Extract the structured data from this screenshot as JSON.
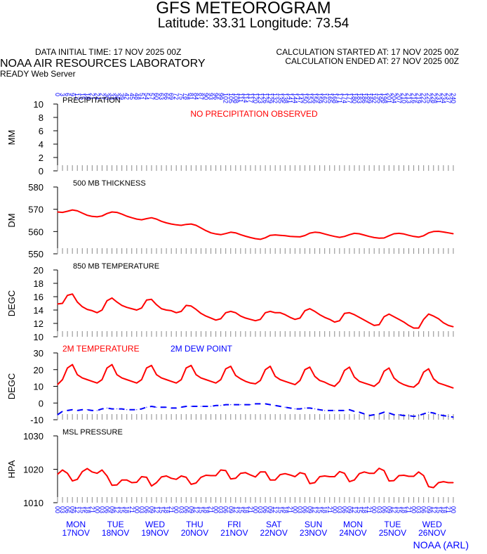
{
  "header": {
    "title": "GFS METEOROGRAM",
    "subtitle": "Latitude: 33.31 Longitude:  73.54",
    "init_time": "DATA INITIAL TIME: 17 NOV 2025 00Z",
    "calc_started": "CALCULATION STARTED AT: 17 NOV 2025 00Z",
    "calc_ended": "CALCULATION ENDED AT: 27 NOV 2025 00Z",
    "lab": "NOAA AIR RESOURCES LABORATORY",
    "server": "READY Web Server",
    "credit": "NOAA (ARL)"
  },
  "colors": {
    "red": "#ff0000",
    "blue": "#0000ff",
    "black": "#000000"
  },
  "chart_data": {
    "forecast_hours": [
      0,
      3,
      6,
      9,
      12,
      15,
      18,
      21,
      24,
      27,
      30,
      33,
      36,
      39,
      42,
      45,
      48,
      51,
      54,
      57,
      60,
      63,
      66,
      69,
      72,
      75,
      78,
      81,
      84,
      87,
      90,
      93,
      96,
      99,
      102,
      105,
      108,
      111,
      114,
      117,
      120,
      123,
      126,
      129,
      132,
      135,
      138,
      141,
      144,
      147,
      150,
      153,
      156,
      159,
      162,
      165,
      168,
      171,
      174,
      177,
      180,
      183,
      186,
      189,
      192,
      195,
      198,
      201,
      204,
      207,
      210,
      213,
      216,
      219,
      222,
      225,
      228,
      231,
      234,
      237,
      240
    ],
    "time_labels": [
      "00",
      "03",
      "06",
      "09",
      "12",
      "15",
      "18",
      "21",
      "00",
      "03",
      "06",
      "09",
      "12",
      "15",
      "18",
      "21",
      "00",
      "03",
      "06",
      "09",
      "12",
      "15",
      "18",
      "21",
      "00",
      "03",
      "06",
      "09",
      "12",
      "15",
      "18",
      "21",
      "00",
      "03",
      "06",
      "09",
      "12",
      "15",
      "18",
      "21",
      "00",
      "03",
      "06",
      "09",
      "12",
      "15",
      "18",
      "21",
      "00",
      "03",
      "06",
      "09",
      "12",
      "15",
      "18",
      "21",
      "00",
      "03",
      "06",
      "09",
      "12",
      "15",
      "18",
      "21",
      "00",
      "03",
      "06",
      "09",
      "12",
      "15",
      "18",
      "21",
      "00",
      "03",
      "06",
      "09",
      "12",
      "15",
      "18",
      "21",
      "00"
    ],
    "days": [
      {
        "dow": "MON",
        "date": "17NOV"
      },
      {
        "dow": "TUE",
        "date": "18NOV"
      },
      {
        "dow": "WED",
        "date": "19NOV"
      },
      {
        "dow": "THU",
        "date": "20NOV"
      },
      {
        "dow": "FRI",
        "date": "21NOV"
      },
      {
        "dow": "SAT",
        "date": "22NOV"
      },
      {
        "dow": "SUN",
        "date": "23NOV"
      },
      {
        "dow": "MON",
        "date": "24NOV"
      },
      {
        "dow": "TUE",
        "date": "25NOV"
      },
      {
        "dow": "WED",
        "date": "26NOV"
      }
    ],
    "panels": [
      {
        "id": "precip",
        "type": "bar",
        "title": "PRECIPITATION",
        "ylabel": "MM",
        "ylim": [
          0,
          10
        ],
        "ticks": [
          0,
          2,
          4,
          6,
          8,
          10
        ],
        "note": "NO PRECIPITATION OBSERVED",
        "values": [
          0,
          0,
          0,
          0,
          0,
          0,
          0,
          0,
          0,
          0,
          0,
          0,
          0,
          0,
          0,
          0,
          0,
          0,
          0,
          0,
          0,
          0,
          0,
          0,
          0,
          0,
          0,
          0,
          0,
          0,
          0,
          0,
          0,
          0,
          0,
          0,
          0,
          0,
          0,
          0,
          0,
          0,
          0,
          0,
          0,
          0,
          0,
          0,
          0,
          0,
          0,
          0,
          0,
          0,
          0,
          0,
          0,
          0,
          0,
          0,
          0,
          0,
          0,
          0,
          0,
          0,
          0,
          0,
          0,
          0,
          0,
          0,
          0,
          0,
          0,
          0,
          0,
          0,
          0,
          0,
          0
        ]
      },
      {
        "id": "thick",
        "type": "line",
        "title": "500 MB  THICKNESS",
        "ylabel": "DM",
        "ylim": [
          550,
          580
        ],
        "ticks": [
          550,
          560,
          570,
          580
        ],
        "series": [
          {
            "color": "red",
            "dashed": false,
            "values": [
              568.8,
              568.6,
              569.1,
              569.7,
              569.3,
              568.3,
              567.3,
              566.8,
              566.6,
              567.0,
              568.1,
              568.8,
              568.6,
              567.8,
              566.9,
              566.2,
              565.6,
              565.3,
              565.8,
              566.2,
              565.6,
              564.6,
              563.9,
              563.4,
              563.0,
              562.8,
              563.2,
              563.4,
              562.8,
              561.6,
              560.4,
              559.4,
              558.9,
              558.6,
              559.1,
              559.7,
              559.4,
              558.6,
              557.9,
              557.3,
              556.8,
              556.5,
              557.2,
              558.3,
              558.5,
              558.3,
              558.1,
              557.8,
              557.7,
              557.6,
              558.2,
              559.3,
              559.7,
              559.5,
              558.9,
              558.3,
              557.8,
              557.4,
              557.8,
              558.6,
              559.2,
              559.0,
              558.4,
              557.8,
              557.3,
              557.0,
              557.1,
              558.1,
              559.0,
              559.2,
              558.9,
              558.3,
              557.8,
              557.5,
              558.1,
              559.4,
              560.0,
              560.1,
              559.8,
              559.4,
              559.0
            ]
          }
        ]
      },
      {
        "id": "t850",
        "type": "line",
        "title": "850 MB  TEMPERATURE",
        "ylabel": "DEGC",
        "ylim": [
          10,
          20
        ],
        "ticks": [
          10,
          12,
          14,
          16,
          18,
          20
        ],
        "series": [
          {
            "color": "red",
            "dashed": false,
            "values": [
              14.9,
              15.0,
              16.2,
              16.4,
              15.2,
              14.5,
              14.1,
              13.9,
              13.6,
              14.0,
              15.4,
              15.8,
              15.2,
              14.7,
              14.4,
              14.2,
              14.0,
              14.3,
              15.5,
              15.6,
              14.8,
              14.2,
              14.0,
              13.9,
              13.6,
              13.8,
              14.7,
              14.6,
              14.1,
              13.5,
              13.1,
              12.8,
              12.5,
              12.7,
              13.6,
              13.8,
              13.6,
              13.1,
              12.8,
              12.6,
              12.4,
              12.6,
              13.6,
              13.8,
              13.6,
              13.6,
              13.3,
              12.9,
              12.6,
              12.8,
              13.9,
              14.2,
              13.8,
              13.3,
              12.9,
              12.6,
              12.2,
              12.4,
              13.5,
              13.6,
              13.3,
              12.9,
              12.5,
              12.1,
              11.7,
              11.8,
              13.0,
              13.4,
              13.0,
              12.6,
              12.2,
              11.7,
              11.3,
              11.3,
              12.6,
              13.4,
              13.1,
              12.7,
              12.1,
              11.7,
              11.5
            ]
          }
        ]
      },
      {
        "id": "t2m",
        "type": "line",
        "title": "",
        "legend": [
          {
            "label": "2M TEMPERATURE",
            "color": "red"
          },
          {
            "label": "2M  DEW POINT",
            "color": "blue"
          }
        ],
        "ylabel": "DEGC",
        "ylim": [
          -10,
          30
        ],
        "ticks": [
          -10,
          0,
          10,
          20,
          30
        ],
        "series": [
          {
            "color": "red",
            "dashed": false,
            "values": [
              11.0,
              14.0,
              21.0,
              23.0,
              17.0,
              15.0,
              14.0,
              13.0,
              12.0,
              14.0,
              21.0,
              23.0,
              17.0,
              15.0,
              14.0,
              13.0,
              12.0,
              14.0,
              21.0,
              22.5,
              17.0,
              15.0,
              14.0,
              13.0,
              12.0,
              14.0,
              21.0,
              22.5,
              17.0,
              15.0,
              14.0,
              13.0,
              12.0,
              14.0,
              20.5,
              22.0,
              16.5,
              14.5,
              13.0,
              12.0,
              11.5,
              13.5,
              20.0,
              22.0,
              16.0,
              14.0,
              13.0,
              12.0,
              11.0,
              13.5,
              20.0,
              21.5,
              16.0,
              13.5,
              12.5,
              11.0,
              10.0,
              13.0,
              19.5,
              21.5,
              15.5,
              13.0,
              12.0,
              11.0,
              10.0,
              12.5,
              19.0,
              21.0,
              15.0,
              12.5,
              11.0,
              10.0,
              9.5,
              12.0,
              18.5,
              20.5,
              14.5,
              12.0,
              11.0,
              10.0,
              9.0
            ]
          },
          {
            "color": "blue",
            "dashed": true,
            "values": [
              -7.0,
              -5.0,
              -4.5,
              -4.0,
              -4.5,
              -4.0,
              -4.0,
              -4.5,
              -4.5,
              -3.5,
              -3.0,
              -3.5,
              -3.5,
              -3.5,
              -4.0,
              -4.0,
              -4.0,
              -3.5,
              -2.5,
              -2.0,
              -2.5,
              -2.5,
              -2.5,
              -3.0,
              -3.0,
              -2.5,
              -2.0,
              -2.0,
              -2.0,
              -2.0,
              -2.0,
              -2.0,
              -1.5,
              -1.5,
              -1.0,
              -1.0,
              -1.0,
              -1.0,
              -1.0,
              -1.0,
              -0.5,
              -0.5,
              -0.5,
              -1.0,
              -1.5,
              -2.0,
              -2.5,
              -3.0,
              -3.5,
              -3.5,
              -3.0,
              -3.0,
              -3.5,
              -4.0,
              -4.5,
              -4.5,
              -4.5,
              -4.5,
              -4.5,
              -4.0,
              -5.0,
              -5.5,
              -6.5,
              -7.5,
              -7.0,
              -6.5,
              -5.5,
              -6.0,
              -7.0,
              -7.0,
              -7.5,
              -7.5,
              -8.0,
              -7.5,
              -6.5,
              -5.5,
              -6.0,
              -7.0,
              -7.5,
              -8.0,
              -8.5
            ]
          }
        ]
      },
      {
        "id": "mslp",
        "type": "line",
        "title": "MSL PRESSURE",
        "ylabel": "HPA",
        "ylim": [
          1010,
          1030
        ],
        "ticks": [
          1010,
          1020,
          1030
        ],
        "series": [
          {
            "color": "red",
            "dashed": false,
            "values": [
              1018.5,
              1019.8,
              1018.8,
              1016.5,
              1017.0,
              1019.3,
              1020.2,
              1019.2,
              1018.8,
              1019.8,
              1018.0,
              1015.2,
              1015.3,
              1016.8,
              1016.8,
              1016.0,
              1016.1,
              1017.8,
              1017.6,
              1015.0,
              1016.0,
              1017.7,
              1018.0,
              1017.3,
              1017.0,
              1018.0,
              1017.6,
              1015.5,
              1015.9,
              1017.6,
              1018.2,
              1018.1,
              1018.1,
              1019.8,
              1019.6,
              1017.1,
              1017.3,
              1018.8,
              1019.0,
              1018.3,
              1017.7,
              1019.2,
              1019.2,
              1016.8,
              1016.8,
              1018.4,
              1018.7,
              1018.3,
              1017.8,
              1019.0,
              1018.6,
              1015.7,
              1016.0,
              1017.8,
              1018.0,
              1017.8,
              1017.8,
              1019.3,
              1018.8,
              1016.3,
              1016.8,
              1018.7,
              1019.2,
              1018.8,
              1018.8,
              1020.3,
              1019.6,
              1016.5,
              1016.6,
              1018.1,
              1018.2,
              1017.9,
              1017.9,
              1019.2,
              1018.1,
              1014.8,
              1014.5,
              1016.0,
              1016.3,
              1016.0,
              1016.0
            ]
          }
        ]
      }
    ]
  }
}
